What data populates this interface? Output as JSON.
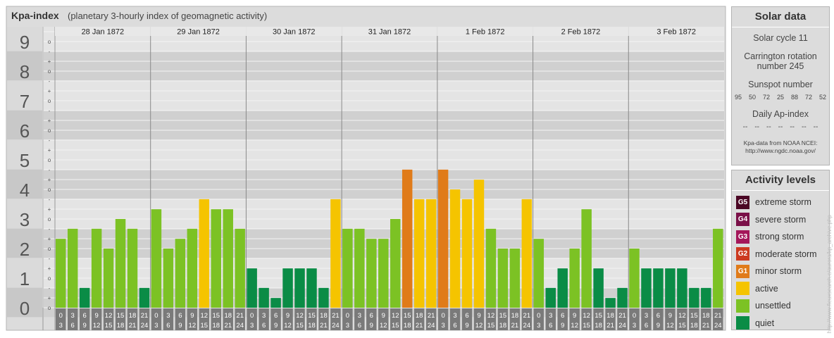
{
  "header": {
    "title": "Kpa-index",
    "subtitle": "(planetary 3-hourly index of geomagnetic activity)"
  },
  "colors": {
    "quiet": "#0a8c46",
    "unsettled": "#7cc224",
    "active": "#f5c400",
    "minor_storm": "#e07b19",
    "moderate_storm": "#cc3a20",
    "strong_storm": "#a4175a",
    "severe_storm": "#7a1048",
    "extreme_storm": "#4b0624"
  },
  "chart_data": {
    "type": "bar",
    "y_axis_labels": [
      "0",
      "1",
      "2",
      "3",
      "4",
      "5",
      "6",
      "7",
      "8",
      "9"
    ],
    "minor_tick_labels": [
      "+",
      "o",
      "-"
    ],
    "ylim": [
      0,
      9.33
    ],
    "days": [
      "28 Jan 1872",
      "29 Jan 1872",
      "30 Jan 1872",
      "31 Jan 1872",
      "1 Feb 1872",
      "2 Feb 1872",
      "3 Feb 1872"
    ],
    "interval_labels": [
      [
        "0",
        "3"
      ],
      [
        "3",
        "6"
      ],
      [
        "6",
        "9"
      ],
      [
        "9",
        "12"
      ],
      [
        "12",
        "15"
      ],
      [
        "15",
        "18"
      ],
      [
        "18",
        "21"
      ],
      [
        "21",
        "24"
      ]
    ],
    "values": [
      [
        2.33,
        2.67,
        0.67,
        2.67,
        2.0,
        3.0,
        2.67,
        0.67
      ],
      [
        3.33,
        2.0,
        2.33,
        2.67,
        3.67,
        3.33,
        3.33,
        2.67
      ],
      [
        1.33,
        0.67,
        0.33,
        1.33,
        1.33,
        1.33,
        0.67,
        3.67
      ],
      [
        2.67,
        2.67,
        2.33,
        2.33,
        3.0,
        4.67,
        3.67,
        3.67
      ],
      [
        4.67,
        4.0,
        3.67,
        4.33,
        2.67,
        2.0,
        2.0,
        3.67
      ],
      [
        2.33,
        0.67,
        1.33,
        2.0,
        3.33,
        1.33,
        0.33,
        0.67
      ],
      [
        2.0,
        1.33,
        1.33,
        1.33,
        1.33,
        0.67,
        0.67,
        2.67
      ]
    ]
  },
  "solar": {
    "title": "Solar data",
    "cycle": "Solar cycle 11",
    "carrington": [
      "Carrington rotation",
      "number 245"
    ],
    "sunspot_title": "Sunspot number",
    "sunspot_values": [
      "95",
      "50",
      "72",
      "25",
      "88",
      "72",
      "52"
    ],
    "ap_title": "Daily Ap-index",
    "ap_values": [
      "--",
      "--",
      "--",
      "--",
      "--",
      "--",
      "--"
    ],
    "credit": [
      "Kpa-data from NOAA NCEI:",
      "http://www.ngdc.noaa.gov/"
    ]
  },
  "levels": {
    "title": "Activity levels",
    "items": [
      {
        "badge": "G5",
        "label": "extreme storm",
        "color": "#4b0624"
      },
      {
        "badge": "G4",
        "label": "severe storm",
        "color": "#7a1048"
      },
      {
        "badge": "G3",
        "label": "strong storm",
        "color": "#a4175a"
      },
      {
        "badge": "G2",
        "label": "moderate storm",
        "color": "#cc3a20"
      },
      {
        "badge": "G1",
        "label": "minor storm",
        "color": "#e07b19"
      },
      {
        "badge": "",
        "label": "active",
        "color": "#f5c400"
      },
      {
        "badge": "",
        "label": "unsettled",
        "color": "#7cc224"
      },
      {
        "badge": "",
        "label": "quiet",
        "color": "#0a8c46"
      }
    ]
  },
  "watermark": "http://www.fieuxsearch.e/aurora/kp_archive.php"
}
